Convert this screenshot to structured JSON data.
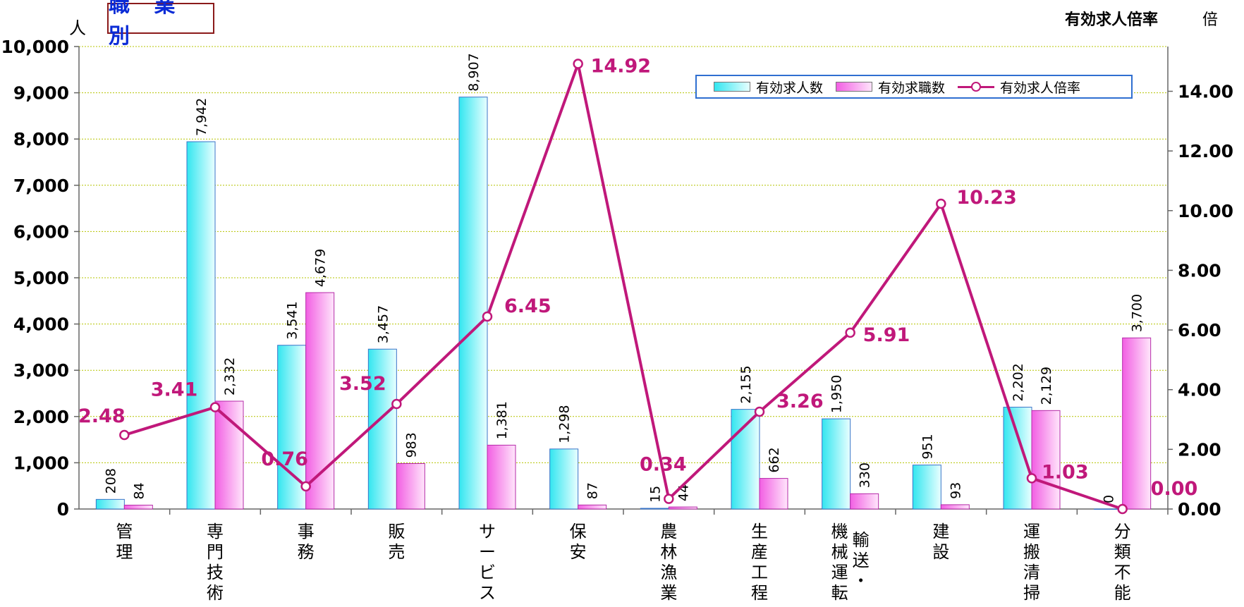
{
  "title": "職 業 別",
  "unit_left": "人",
  "unit_right_title": "有効求人倍率",
  "unit_right": "倍",
  "legend": {
    "openings": "有効求人数",
    "applicants": "有効求職数",
    "ratio": "有効求人倍率"
  },
  "colors": {
    "openings": "#33e6f0",
    "applicants": "#f25fe3",
    "ratio": "#c0187a",
    "ratio_label": "#c0187a",
    "grid": "#b5c400"
  },
  "chart_data": {
    "type": "bar",
    "categories": [
      "管理",
      "専門技術",
      "事務",
      "販売",
      "サービス",
      "保安",
      "農林漁業",
      "生産工程",
      "輸送・機械運転",
      "建設",
      "運搬清掃",
      "分類不能"
    ],
    "category_columns": [
      [
        "管理"
      ],
      [
        "専門技術"
      ],
      [
        "事務"
      ],
      [
        "販売"
      ],
      [
        "サービス"
      ],
      [
        "保安"
      ],
      [
        "農林漁業"
      ],
      [
        "生産工程"
      ],
      [
        "機械運転",
        "輸送・"
      ],
      [
        "建設"
      ],
      [
        "運搬清掃"
      ],
      [
        "分類不能"
      ]
    ],
    "series": [
      {
        "name": "有効求人数",
        "type": "bar",
        "axis": "left",
        "values": [
          208,
          7942,
          3541,
          3457,
          8907,
          1298,
          15,
          2155,
          1950,
          951,
          2202,
          0
        ],
        "labels": [
          "208",
          "7,942",
          "3,541",
          "3,457",
          "8,907",
          "1,298",
          "15",
          "2,155",
          "1,950",
          "951",
          "2,202",
          "0"
        ]
      },
      {
        "name": "有効求職数",
        "type": "bar",
        "axis": "left",
        "values": [
          84,
          2332,
          4679,
          983,
          1381,
          87,
          44,
          662,
          330,
          93,
          2129,
          3700
        ],
        "labels": [
          "84",
          "2,332",
          "4,679",
          "983",
          "1,381",
          "87",
          "44",
          "662",
          "330",
          "93",
          "2,129",
          "3,700"
        ]
      },
      {
        "name": "有効求人倍率",
        "type": "line",
        "axis": "right",
        "values": [
          2.48,
          3.41,
          0.76,
          3.52,
          6.45,
          14.92,
          0.34,
          3.26,
          5.91,
          10.23,
          1.03,
          0.0
        ],
        "labels": [
          "2.48",
          "3.41",
          "0.76",
          "3.52",
          "6.45",
          "14.92",
          "0.34",
          "3.26",
          "5.91",
          "10.23",
          "1.03",
          "0.00"
        ]
      }
    ],
    "left_axis": {
      "min": 0,
      "max": 10000,
      "step": 1000,
      "tick_labels": [
        "0",
        "1,000",
        "2,000",
        "3,000",
        "4,000",
        "5,000",
        "6,000",
        "7,000",
        "8,000",
        "9,000",
        "10,000"
      ]
    },
    "right_axis": {
      "min": 0,
      "max": 15.5,
      "step": 2,
      "tick_labels": [
        "0.00",
        "2.00",
        "4.00",
        "6.00",
        "8.00",
        "10.00",
        "12.00",
        "14.00"
      ]
    },
    "grid": true,
    "legend_position": "top-right"
  }
}
